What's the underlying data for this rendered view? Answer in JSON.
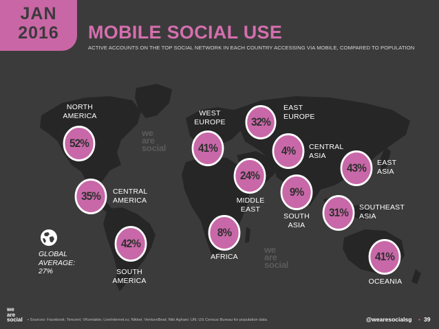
{
  "header": {
    "month": "JAN",
    "year": "2016",
    "title": "MOBILE SOCIAL USE",
    "subtitle": "ACTIVE ACCOUNTS ON THE TOP SOCIAL NETWORK IN EACH COUNTRY ACCESSING VIA MOBILE, COMPARED TO POPULATION"
  },
  "regions": [
    {
      "key": "north-america",
      "value": "52%",
      "label_lines": [
        "NORTH",
        "AMERICA"
      ]
    },
    {
      "key": "central-america",
      "value": "35%",
      "label_lines": [
        "CENTRAL",
        "AMERICA"
      ]
    },
    {
      "key": "south-america",
      "value": "42%",
      "label_lines": [
        "SOUTH",
        "AMERICA"
      ]
    },
    {
      "key": "west-europe",
      "value": "41%",
      "label_lines": [
        "WEST",
        "EUROPE"
      ]
    },
    {
      "key": "east-europe",
      "value": "32%",
      "label_lines": [
        "EAST",
        "EUROPE"
      ]
    },
    {
      "key": "central-asia",
      "value": "4%",
      "label_lines": [
        "CENTRAL",
        "ASIA"
      ]
    },
    {
      "key": "middle-east",
      "value": "24%",
      "label_lines": [
        "MIDDLE",
        "EAST"
      ]
    },
    {
      "key": "south-asia",
      "value": "9%",
      "label_lines": [
        "SOUTH",
        "ASIA"
      ]
    },
    {
      "key": "east-asia",
      "value": "43%",
      "label_lines": [
        "EAST",
        "ASIA"
      ]
    },
    {
      "key": "southeast-asia",
      "value": "31%",
      "label_lines": [
        "SOUTHEAST",
        "ASIA"
      ]
    },
    {
      "key": "africa",
      "value": "8%",
      "label_lines": [
        "AFRICA"
      ]
    },
    {
      "key": "oceania",
      "value": "41%",
      "label_lines": [
        "OCEANIA"
      ]
    }
  ],
  "global": {
    "lines": [
      "GLOBAL",
      "AVERAGE:",
      "27%"
    ],
    "icon": "globe-icon"
  },
  "watermark": [
    "we",
    "are",
    "social"
  ],
  "footer": {
    "logo_lines": [
      "we",
      "are",
      "social"
    ],
    "sources": "•   Sources: Facebook; Tencent; VKontakte; LiveInternet.ru; Nikkei; VentureBeat; Niki Aghaei; UN; US Census Bureau for population data.",
    "handle": "@wearesocialsg",
    "separator": "•",
    "page": "39"
  },
  "colors": {
    "background": "#3b3b3b",
    "accent": "#c966a6",
    "bubble": "#c868a8",
    "map": "#262626"
  }
}
